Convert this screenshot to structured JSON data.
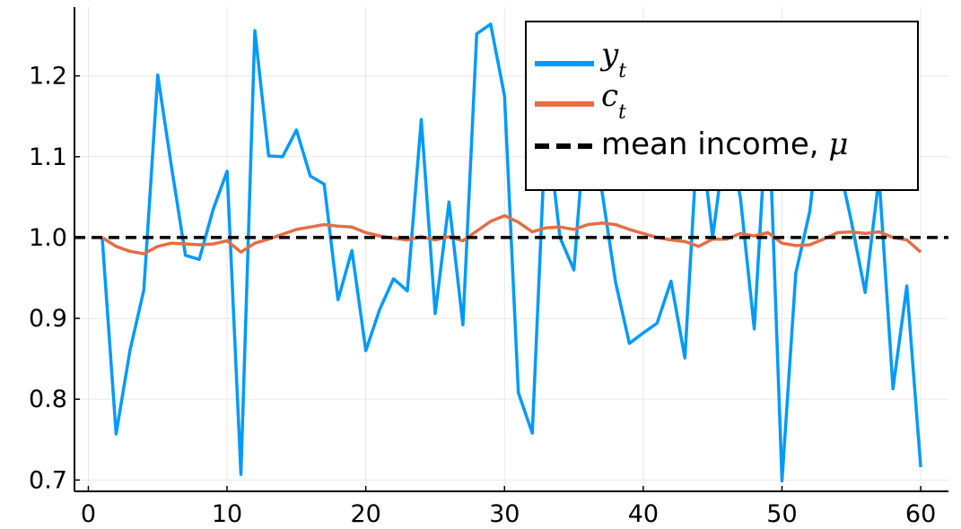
{
  "chart_data": {
    "type": "line",
    "title": "",
    "xlabel": "",
    "ylabel": "",
    "xlim": [
      -1,
      62
    ],
    "ylim": [
      0.686,
      1.285
    ],
    "xticks": [
      0,
      10,
      20,
      30,
      40,
      50,
      60
    ],
    "yticks": [
      0.7,
      0.8,
      0.9,
      1.0,
      1.1,
      1.2
    ],
    "xtick_labels": [
      "0",
      "10",
      "20",
      "30",
      "40",
      "50",
      "60"
    ],
    "ytick_labels": [
      "0.7",
      "0.8",
      "0.9",
      "1.0",
      "1.1",
      "1.2"
    ],
    "grid": true,
    "legend_position": "top-right",
    "x": [
      1,
      2,
      3,
      4,
      5,
      6,
      7,
      8,
      9,
      10,
      11,
      12,
      13,
      14,
      15,
      16,
      17,
      18,
      19,
      20,
      21,
      22,
      23,
      24,
      25,
      26,
      27,
      28,
      29,
      30,
      31,
      32,
      33,
      34,
      35,
      36,
      37,
      38,
      39,
      40,
      41,
      42,
      43,
      44,
      45,
      46,
      47,
      48,
      49,
      50,
      51,
      52,
      53,
      54,
      55,
      56,
      57,
      58,
      59,
      60
    ],
    "series": [
      {
        "legend_base": "y",
        "legend_sub": "t",
        "color": "#009AFA",
        "style": "solid",
        "values": [
          1.0,
          0.757,
          0.86,
          0.935,
          1.201,
          1.087,
          0.978,
          0.973,
          1.035,
          1.082,
          0.707,
          1.256,
          1.101,
          1.1,
          1.133,
          1.076,
          1.066,
          0.923,
          0.984,
          0.86,
          0.911,
          0.949,
          0.934,
          1.146,
          0.906,
          1.044,
          0.892,
          1.252,
          1.264,
          1.175,
          0.808,
          0.758,
          1.15,
          1.0,
          0.96,
          1.18,
          1.06,
          0.945,
          0.869,
          0.882,
          0.894,
          0.946,
          0.851,
          1.15,
          1.0,
          1.13,
          1.05,
          0.887,
          1.18,
          0.699,
          0.956,
          1.032,
          1.18,
          1.1,
          1.02,
          0.932,
          1.075,
          0.813,
          0.94,
          0.716
        ]
      },
      {
        "legend_base": "c",
        "legend_sub": "t",
        "color": "#E26F46",
        "style": "solid",
        "values": [
          1.0,
          0.989,
          0.983,
          0.98,
          0.989,
          0.993,
          0.992,
          0.991,
          0.992,
          0.996,
          0.982,
          0.993,
          0.998,
          1.004,
          1.01,
          1.013,
          1.016,
          1.014,
          1.013,
          1.006,
          1.002,
          0.999,
          0.997,
          1.001,
          0.997,
          1.001,
          0.996,
          1.008,
          1.02,
          1.027,
          1.019,
          1.007,
          1.012,
          1.013,
          1.01,
          1.016,
          1.018,
          1.016,
          1.01,
          1.005,
          1.0,
          0.997,
          0.995,
          0.989,
          0.998,
          0.998,
          1.005,
          1.002,
          1.006,
          0.993,
          0.99,
          0.991,
          0.998,
          1.006,
          1.007,
          1.005,
          1.007,
          1.0,
          0.997,
          0.982
        ]
      },
      {
        "legend_base": "mean income, ",
        "legend_symbol": "μ",
        "color": "#000000",
        "style": "dashed",
        "constant": 1.0
      }
    ]
  }
}
